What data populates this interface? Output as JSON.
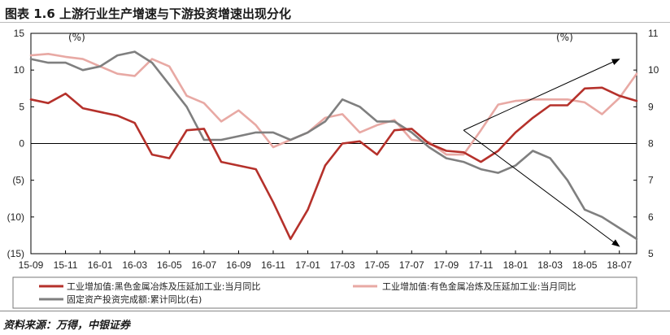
{
  "header": {
    "title": "图表 1.6 上游行业生产增速与下游投资增速出现分化"
  },
  "footer": {
    "source": "资料来源：万得，中银证券"
  },
  "chart_data": {
    "type": "line",
    "title": "图表 1.6 上游行业生产增速与下游投资增速出现分化",
    "x": [
      "15-09",
      "15-10",
      "15-11",
      "15-12",
      "16-01",
      "16-02",
      "16-03",
      "16-04",
      "16-05",
      "16-06",
      "16-07",
      "16-08",
      "16-09",
      "16-10",
      "16-11",
      "16-12",
      "17-01",
      "17-02",
      "17-03",
      "17-04",
      "17-05",
      "17-06",
      "17-07",
      "17-08",
      "17-09",
      "17-10",
      "17-11",
      "17-12",
      "18-01",
      "18-02",
      "18-03",
      "18-04",
      "18-05",
      "18-06",
      "18-07",
      "18-08"
    ],
    "x_tick_labels": [
      "15-09",
      "15-11",
      "16-01",
      "16-03",
      "16-05",
      "16-07",
      "16-09",
      "16-11",
      "17-01",
      "17-03",
      "17-05",
      "17-07",
      "17-09",
      "17-11",
      "18-01",
      "18-03",
      "18-05",
      "18-07"
    ],
    "left_axis": {
      "unit": "(%)",
      "ylim": [
        -15,
        15
      ],
      "ticks": [
        "15",
        "10",
        "5",
        "0",
        "(5)",
        "(10)",
        "(15)"
      ],
      "tick_values": [
        15,
        10,
        5,
        0,
        -5,
        -10,
        -15
      ],
      "negative_tick_color": "#c0392b"
    },
    "right_axis": {
      "unit": "(%)",
      "ylim": [
        5,
        11
      ],
      "ticks": [
        "11",
        "10",
        "9",
        "8",
        "7",
        "6",
        "5"
      ],
      "tick_values": [
        11,
        10,
        9,
        8,
        7,
        6,
        5
      ]
    },
    "series": [
      {
        "name": "工业增加值:黑色金属冶炼及压延加工业:当月同比",
        "color": "#b5312b",
        "axis": "left",
        "values": [
          6.0,
          5.5,
          6.8,
          4.8,
          4.3,
          3.8,
          2.8,
          -1.5,
          -2.0,
          1.8,
          2.0,
          -2.5,
          -3.0,
          -3.5,
          -8.0,
          -13.0,
          -9.0,
          -3.0,
          0.0,
          0.3,
          -1.5,
          1.8,
          2.0,
          0.0,
          -1.0,
          -1.2,
          -2.5,
          -1.0,
          1.5,
          3.5,
          5.2,
          5.2,
          7.5,
          7.6,
          6.5,
          5.8
        ]
      },
      {
        "name": "工业增加值:有色金属冶炼及压延加工业:当月同比",
        "color": "#e8a9a4",
        "axis": "left",
        "values": [
          12.0,
          12.2,
          11.8,
          11.5,
          10.5,
          9.5,
          9.2,
          11.5,
          10.5,
          6.5,
          5.5,
          3.0,
          4.5,
          2.5,
          -0.5,
          0.5,
          1.5,
          3.5,
          4.0,
          1.5,
          2.5,
          3.2,
          0.5,
          0.2,
          -1.5,
          -1.5,
          1.8,
          5.3,
          5.8,
          6.0,
          6.0,
          6.0,
          5.6,
          4.0,
          6.2,
          9.5
        ]
      },
      {
        "name": "固定资产投资完成额:累计同比(右)",
        "color": "#7f7f7f",
        "axis": "right",
        "values": [
          10.3,
          10.2,
          10.2,
          10.0,
          10.1,
          10.4,
          10.5,
          10.2,
          9.6,
          9.0,
          8.1,
          8.1,
          8.2,
          8.3,
          8.3,
          8.1,
          8.3,
          8.6,
          9.2,
          9.0,
          8.6,
          8.6,
          8.3,
          7.9,
          7.6,
          7.5,
          7.3,
          7.2,
          7.4,
          7.8,
          7.6,
          7.0,
          6.2,
          6.0,
          5.7,
          5.4
        ]
      }
    ],
    "arrows": [
      {
        "from_x": "17-10",
        "from_y": 1.8,
        "to_x": "18-07",
        "to_y": 11.5,
        "axis": "left",
        "note": "upward divergence arrow"
      },
      {
        "from_x": "17-10",
        "from_y": 1.8,
        "to_x": "18-07",
        "to_y": -14.0,
        "axis": "left",
        "note": "downward divergence arrow"
      }
    ],
    "legend": {
      "position": "bottom"
    }
  }
}
